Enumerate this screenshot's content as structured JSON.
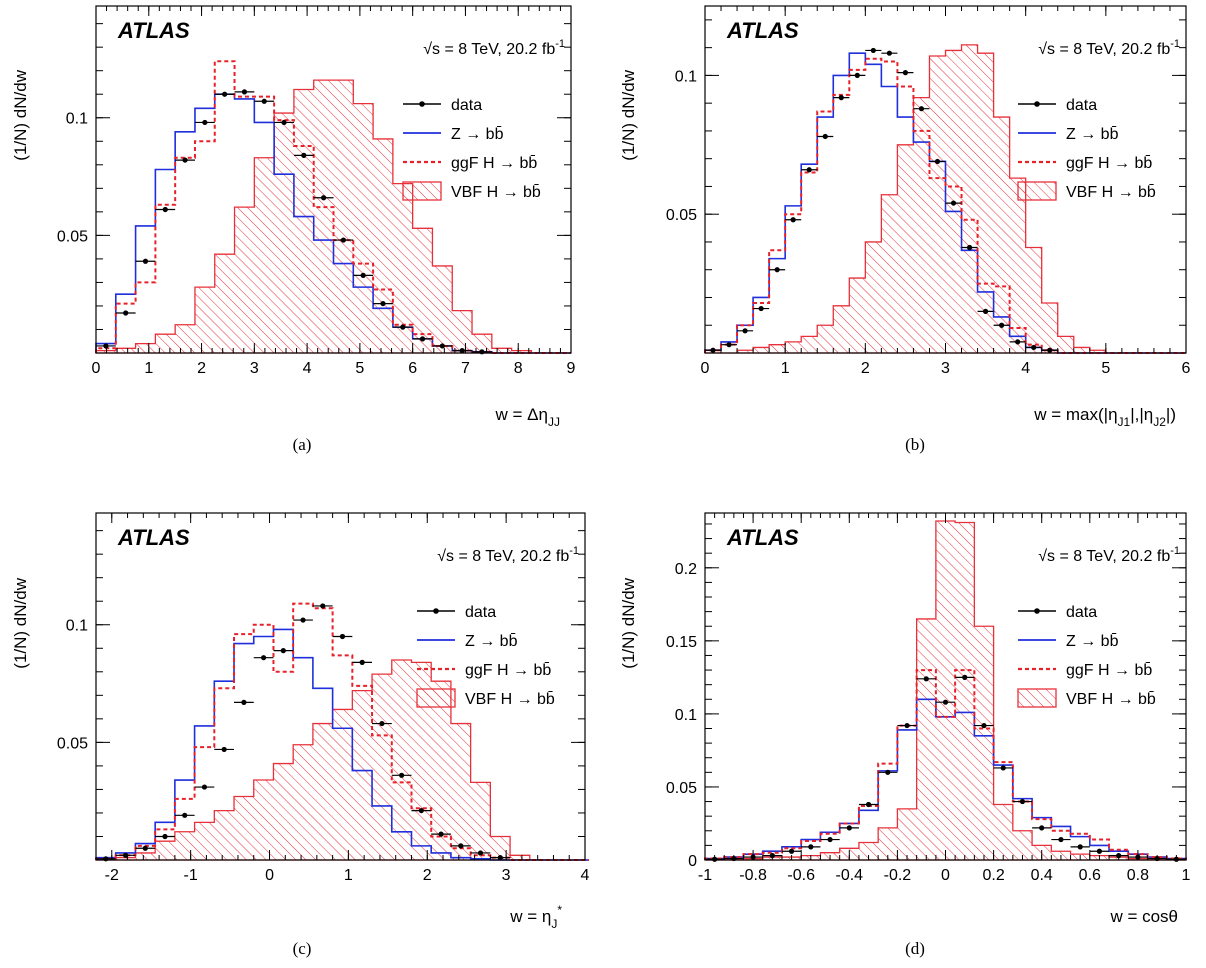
{
  "chart_data": [
    {
      "type": "histogram",
      "panel_label": "(a)",
      "experiment": "ATLAS",
      "energy_label": "√s = 8 TeV, 20.2 fb",
      "energy_sup": "-1",
      "ylabel": "(1/N) dN/dw",
      "xlabel": "w = Δη",
      "xlabel_sub": "JJ",
      "xlabel_tail": "",
      "xlim": [
        0,
        9
      ],
      "ylim": [
        0,
        0.1475
      ],
      "xticks": [
        0,
        1,
        2,
        3,
        4,
        5,
        6,
        7,
        8,
        9
      ],
      "xtick_labels": [
        "0",
        "1",
        "2",
        "3",
        "4",
        "5",
        "6",
        "7",
        "8",
        "9"
      ],
      "yticks": [
        0.05,
        0.1
      ],
      "ytick_labels": [
        "0.05",
        "0.1"
      ],
      "bin_edges": [
        0,
        0.375,
        0.75,
        1.125,
        1.5,
        1.875,
        2.25,
        2.625,
        3.0,
        3.375,
        3.75,
        4.125,
        4.5,
        4.875,
        5.25,
        5.625,
        6.0,
        6.375,
        6.75,
        7.125,
        7.5,
        7.875,
        8.25,
        8.625,
        9.0
      ],
      "legend": [
        {
          "label": "data",
          "style": "data"
        },
        {
          "label": "Z → bb̄",
          "style": "z"
        },
        {
          "label": "ggF H → bb̄",
          "style": "ggf"
        },
        {
          "label": "VBF H → bb̄",
          "style": "vbf"
        }
      ],
      "series": {
        "data": [
          0.003,
          0.017,
          0.039,
          0.061,
          0.082,
          0.098,
          0.11,
          0.111,
          0.107,
          0.098,
          0.084,
          0.066,
          0.048,
          0.033,
          0.021,
          0.011,
          0.006,
          0.003,
          0.001,
          0.0005,
          0,
          0,
          0,
          0
        ],
        "z": [
          0.004,
          0.025,
          0.054,
          0.078,
          0.094,
          0.104,
          0.11,
          0.108,
          0.098,
          0.076,
          0.058,
          0.048,
          0.038,
          0.028,
          0.019,
          0.011,
          0.006,
          0.003,
          0.001,
          0.0005,
          0,
          0,
          0,
          0
        ],
        "ggf": [
          0.002,
          0.021,
          0.03,
          0.063,
          0.083,
          0.09,
          0.124,
          0.109,
          0.109,
          0.099,
          0.088,
          0.062,
          0.048,
          0.038,
          0.027,
          0.012,
          0.008,
          0.003,
          0.001,
          0.0005,
          0,
          0,
          0,
          0
        ],
        "vbf": [
          0.001,
          0.002,
          0.004,
          0.008,
          0.012,
          0.028,
          0.042,
          0.062,
          0.083,
          0.102,
          0.112,
          0.116,
          0.116,
          0.106,
          0.091,
          0.072,
          0.053,
          0.037,
          0.018,
          0.008,
          0.002,
          0.001,
          0,
          0
        ]
      }
    },
    {
      "type": "histogram",
      "panel_label": "(b)",
      "experiment": "ATLAS",
      "energy_label": "√s = 8 TeV, 20.2 fb",
      "energy_sup": "-1",
      "ylabel": "(1/N) dN/dw",
      "xlabel": "w = max(|η",
      "xlabel_sub": "J1",
      "xlabel_mid": "|,|η",
      "xlabel_sub2": "J2",
      "xlabel_tail": "|)",
      "xlim": [
        0,
        6
      ],
      "ylim": [
        0,
        0.125
      ],
      "xticks": [
        0,
        1,
        2,
        3,
        4,
        5,
        6
      ],
      "xtick_labels": [
        "0",
        "1",
        "2",
        "3",
        "4",
        "5",
        "6"
      ],
      "yticks": [
        0.05,
        0.1
      ],
      "ytick_labels": [
        "0.05",
        "0.1"
      ],
      "bin_edges": [
        0,
        0.2,
        0.4,
        0.6,
        0.8,
        1.0,
        1.2,
        1.4,
        1.6,
        1.8,
        2.0,
        2.2,
        2.4,
        2.6,
        2.8,
        3.0,
        3.2,
        3.4,
        3.6,
        3.8,
        4.0,
        4.2,
        4.4,
        4.6,
        4.8,
        5.0,
        5.2,
        5.4,
        5.6,
        5.8,
        6.0
      ],
      "legend": [
        {
          "label": "data",
          "style": "data"
        },
        {
          "label": "Z → bb̄",
          "style": "z"
        },
        {
          "label": "ggF H → bb̄",
          "style": "ggf"
        },
        {
          "label": "VBF H → bb̄",
          "style": "vbf"
        }
      ],
      "series": {
        "data": [
          0.001,
          0.003,
          0.008,
          0.016,
          0.03,
          0.048,
          0.066,
          0.078,
          0.092,
          0.1,
          0.109,
          0.108,
          0.101,
          0.088,
          0.069,
          0.054,
          0.038,
          0.015,
          0.01,
          0.004,
          0.002,
          0.001,
          0,
          0,
          0,
          0,
          0,
          0,
          0,
          0
        ],
        "z": [
          0.001,
          0.004,
          0.01,
          0.02,
          0.034,
          0.053,
          0.068,
          0.085,
          0.1,
          0.108,
          0.104,
          0.096,
          0.085,
          0.076,
          0.069,
          0.051,
          0.037,
          0.022,
          0.013,
          0.006,
          0.002,
          0.001,
          0,
          0,
          0,
          0,
          0,
          0,
          0,
          0
        ],
        "ggf": [
          0.001,
          0.003,
          0.01,
          0.018,
          0.037,
          0.05,
          0.065,
          0.087,
          0.093,
          0.102,
          0.106,
          0.105,
          0.096,
          0.08,
          0.063,
          0.06,
          0.048,
          0.025,
          0.024,
          0.009,
          0.003,
          0.001,
          0,
          0,
          0,
          0,
          0,
          0,
          0,
          0
        ],
        "vbf": [
          0,
          0,
          0.001,
          0.002,
          0.003,
          0.004,
          0.006,
          0.01,
          0.017,
          0.027,
          0.04,
          0.057,
          0.075,
          0.092,
          0.107,
          0.109,
          0.111,
          0.108,
          0.085,
          0.063,
          0.038,
          0.018,
          0.006,
          0.002,
          0.001,
          0,
          0,
          0,
          0,
          0
        ]
      }
    },
    {
      "type": "histogram",
      "panel_label": "(c)",
      "experiment": "ATLAS",
      "energy_label": "√s = 8 TeV, 20.2 fb",
      "energy_sup": "-1",
      "ylabel": "(1/N) dN/dw",
      "xlabel": "w = η",
      "xlabel_sub": "J",
      "xlabel_sup": "*",
      "xlabel_tail": "",
      "xlim": [
        -2.2,
        4
      ],
      "ylim": [
        0,
        0.1475
      ],
      "xticks": [
        -2,
        -1,
        0,
        1,
        2,
        3,
        4
      ],
      "xtick_labels": [
        "-2",
        "-1",
        "0",
        "1",
        "2",
        "3",
        "4"
      ],
      "yticks": [
        0.05,
        0.1
      ],
      "ytick_labels": [
        "0.05",
        "0.1"
      ],
      "bin_edges": [
        -2.2,
        -1.95,
        -1.7,
        -1.45,
        -1.2,
        -0.95,
        -0.7,
        -0.45,
        -0.2,
        0.05,
        0.3,
        0.55,
        0.8,
        1.05,
        1.3,
        1.55,
        1.8,
        2.05,
        2.3,
        2.55,
        2.8,
        3.05,
        3.3,
        3.55,
        3.8,
        4.05
      ],
      "legend": [
        {
          "label": "data",
          "style": "data"
        },
        {
          "label": "Z → bb̄",
          "style": "z"
        },
        {
          "label": "ggF H → bb̄",
          "style": "ggf"
        },
        {
          "label": "VBF H → bb̄",
          "style": "vbf"
        }
      ],
      "series": {
        "data": [
          0.0005,
          0.002,
          0.005,
          0.01,
          0.019,
          0.031,
          0.047,
          0.067,
          0.086,
          0.089,
          0.102,
          0.108,
          0.095,
          0.084,
          0.058,
          0.036,
          0.021,
          0.011,
          0.006,
          0.003,
          0.001,
          0,
          0,
          0,
          0
        ],
        "z": [
          0.001,
          0.003,
          0.007,
          0.016,
          0.034,
          0.057,
          0.076,
          0.092,
          0.095,
          0.098,
          0.086,
          0.073,
          0.056,
          0.038,
          0.023,
          0.012,
          0.006,
          0.003,
          0.001,
          0.0005,
          0,
          0,
          0,
          0,
          0
        ],
        "ggf": [
          0.0005,
          0.002,
          0.006,
          0.013,
          0.026,
          0.048,
          0.073,
          0.096,
          0.1,
          0.08,
          0.109,
          0.107,
          0.087,
          0.074,
          0.053,
          0.033,
          0.022,
          0.01,
          0.005,
          0.002,
          0.001,
          0,
          0,
          0,
          0
        ],
        "vbf": [
          0,
          0.001,
          0.003,
          0.008,
          0.012,
          0.016,
          0.021,
          0.027,
          0.034,
          0.041,
          0.049,
          0.058,
          0.064,
          0.072,
          0.079,
          0.085,
          0.084,
          0.076,
          0.058,
          0.033,
          0.01,
          0.002,
          0,
          0,
          0
        ]
      }
    },
    {
      "type": "histogram",
      "panel_label": "(d)",
      "experiment": "ATLAS",
      "energy_label": "√s = 8 TeV, 20.2 fb",
      "energy_sup": "-1",
      "ylabel": "(1/N) dN/dw",
      "xlabel": "w = cosθ",
      "xlabel_sub": "",
      "xlabel_tail": "",
      "xlim": [
        -1,
        1
      ],
      "ylim": [
        0,
        0.2375
      ],
      "xticks": [
        -1,
        -0.8,
        -0.6,
        -0.4,
        -0.2,
        0,
        0.2,
        0.4,
        0.6,
        0.8,
        1
      ],
      "xtick_labels": [
        "-1",
        "-0.8",
        "-0.6",
        "-0.4",
        "-0.2",
        "0",
        "0.2",
        "0.4",
        "0.6",
        "0.8",
        "1"
      ],
      "yticks": [
        0,
        0.05,
        0.1,
        0.15,
        0.2
      ],
      "ytick_labels": [
        "0",
        "0.05",
        "0.1",
        "0.15",
        "0.2"
      ],
      "bin_edges": [
        -1.0,
        -0.92,
        -0.84,
        -0.76,
        -0.68,
        -0.6,
        -0.52,
        -0.44,
        -0.36,
        -0.28,
        -0.2,
        -0.12,
        -0.04,
        0.04,
        0.12,
        0.2,
        0.28,
        0.36,
        0.44,
        0.52,
        0.6,
        0.68,
        0.76,
        0.84,
        0.92,
        1.0
      ],
      "legend": [
        {
          "label": "data",
          "style": "data"
        },
        {
          "label": "Z → bb̄",
          "style": "z"
        },
        {
          "label": "ggF H → bb̄",
          "style": "ggf"
        },
        {
          "label": "VBF H → bb̄",
          "style": "vbf"
        }
      ],
      "series": {
        "data": [
          0.0005,
          0.001,
          0.002,
          0.003,
          0.006,
          0.009,
          0.014,
          0.022,
          0.038,
          0.06,
          0.092,
          0.124,
          0.108,
          0.125,
          0.092,
          0.063,
          0.04,
          0.022,
          0.014,
          0.009,
          0.006,
          0.003,
          0.002,
          0.001,
          0.0005
        ],
        "z": [
          0.001,
          0.002,
          0.004,
          0.006,
          0.009,
          0.014,
          0.019,
          0.025,
          0.034,
          0.061,
          0.089,
          0.11,
          0.098,
          0.101,
          0.085,
          0.065,
          0.042,
          0.029,
          0.023,
          0.016,
          0.01,
          0.006,
          0.004,
          0.002,
          0.001
        ],
        "ggf": [
          0.001,
          0.002,
          0.004,
          0.005,
          0.008,
          0.013,
          0.018,
          0.025,
          0.037,
          0.066,
          0.092,
          0.13,
          0.098,
          0.13,
          0.09,
          0.067,
          0.04,
          0.028,
          0.02,
          0.018,
          0.014,
          0.007,
          0.004,
          0.002,
          0.001
        ],
        "vbf": [
          0,
          0.001,
          0.001,
          0.002,
          0.002,
          0.003,
          0.005,
          0.008,
          0.012,
          0.022,
          0.035,
          0.165,
          0.232,
          0.231,
          0.16,
          0.038,
          0.02,
          0.01,
          0.006,
          0.004,
          0.003,
          0.002,
          0.001,
          0.001,
          0
        ]
      }
    }
  ]
}
